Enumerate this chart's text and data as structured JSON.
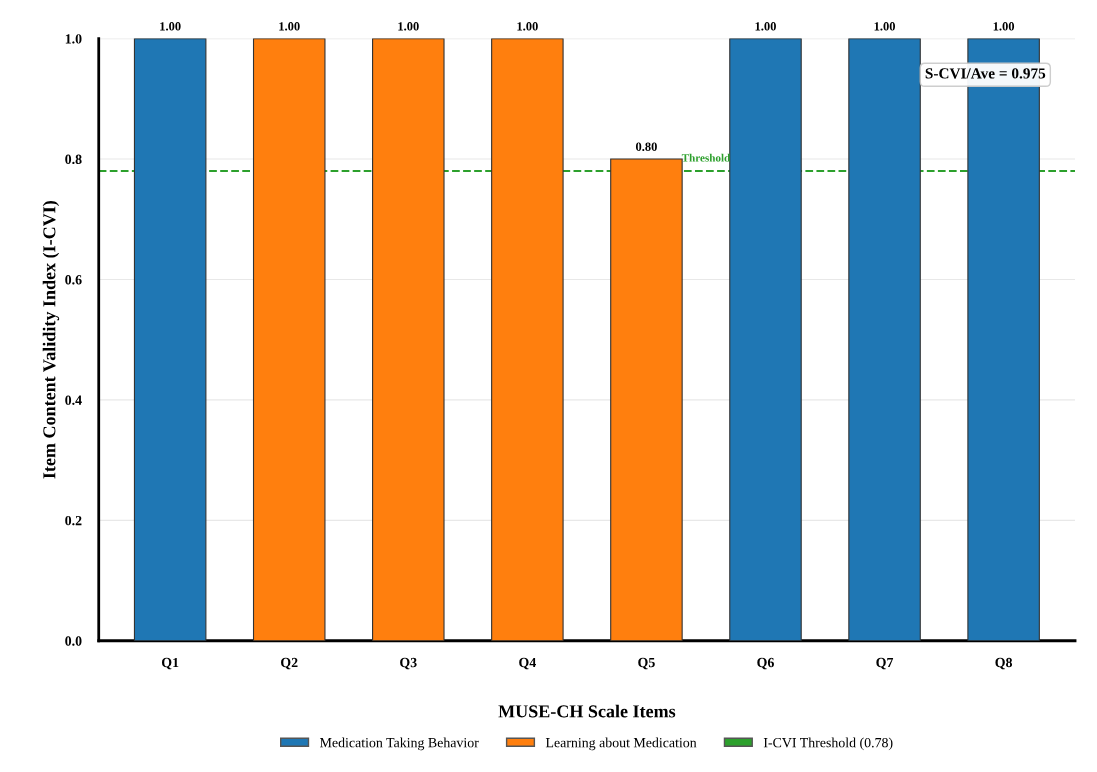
{
  "chart_data": {
    "type": "bar",
    "xlabel": "MUSE-CH Scale Items",
    "ylabel": "Item Content Validity Index (I-CVI)",
    "categories": [
      "Q1",
      "Q2",
      "Q3",
      "Q4",
      "Q5",
      "Q6",
      "Q7",
      "Q8"
    ],
    "series": [
      {
        "name": "Medication Taking Behavior",
        "color": "#1f77b4",
        "values": [
          1.0,
          null,
          null,
          null,
          null,
          1.0,
          1.0,
          1.0
        ],
        "value_labels": [
          "1.00",
          null,
          null,
          null,
          null,
          "1.00",
          "1.00",
          "1.00"
        ]
      },
      {
        "name": "Learning about Medication",
        "color": "#ff7f0e",
        "values": [
          null,
          1.0,
          1.0,
          1.0,
          0.8,
          null,
          null,
          null
        ],
        "value_labels": [
          null,
          "1.00",
          "1.00",
          "1.00",
          "0.80",
          null,
          null,
          null
        ]
      }
    ],
    "ylim": [
      0,
      1.0
    ],
    "yticks": [
      {
        "value": 0,
        "label": "0.0"
      },
      0.2,
      0.4,
      0.6,
      0.8,
      {
        "value": 1,
        "label": "1.0"
      }
    ],
    "ref_lines": [
      {
        "axis": "y",
        "value": 0.78,
        "label": "I-CVI Threshold (0.78)",
        "color": "#2ca02c",
        "line_style": "dashed"
      }
    ],
    "annotations": [
      "Threshold",
      "S-CVI/Ave = 0.975"
    ],
    "grid": "y",
    "legend": "bottom"
  }
}
